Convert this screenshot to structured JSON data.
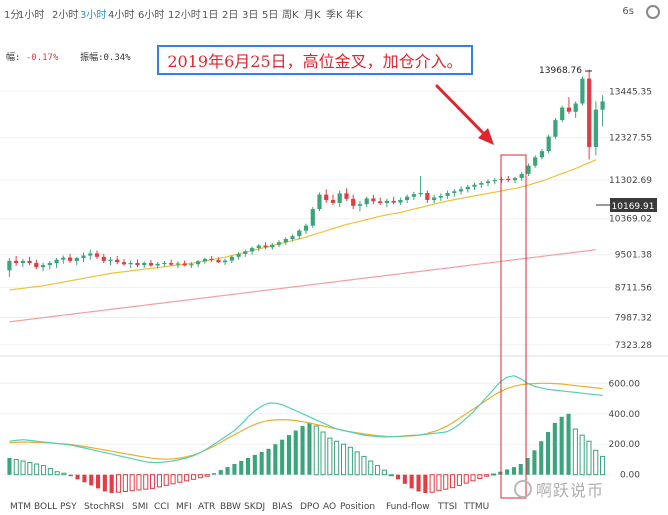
{
  "timeframes": [
    "1分",
    "1小时",
    "2小时",
    "3小时",
    "4小时",
    "6小时",
    "12小时",
    "1日",
    "2日",
    "3日",
    "5日",
    "周K",
    "月K",
    "季K",
    "年K"
  ],
  "active_timeframe": "3小时",
  "interval_label": "6s",
  "info_row": {
    "change_label": "幅",
    "change_value": "-0.17%",
    "amplitude_label": "振幅",
    "amplitude_value": "0.34%"
  },
  "annotation": "2019年6月25日，高位金叉，加仓介入。",
  "price_axis": {
    "ticks": [
      "13445.35",
      "12327.55",
      "11302.69",
      "10369.02",
      "9501.38",
      "8711.56",
      "7987.32",
      "7323.28"
    ],
    "high_label": "13968.76",
    "current_price": "10169.91"
  },
  "macd_axis": {
    "ticks": [
      "600.00",
      "400.00",
      "200.00",
      "0.00"
    ]
  },
  "indicators": [
    "MTM",
    "BOLL",
    "PSY",
    "StochRSI",
    "SMI",
    "CCI",
    "MFI",
    "ATR",
    "BBW",
    "SKDJ",
    "BIAS",
    "DPO",
    "AO",
    "Position",
    "Fund-flow",
    "TTSI",
    "TTMU"
  ],
  "watermark": "啊跃说币",
  "colors": {
    "up": "#3aa57a",
    "down": "#e23c44",
    "ma_short": "#f0c23a",
    "ma_long": "#f2a0a0",
    "signal_line": "#e8b030",
    "macd_line": "#55d0b8",
    "annotation_border": "#2f86d6",
    "annotation_text": "#e0252f",
    "arrow": "#e0252f",
    "active_tab": "#2a8fd6"
  },
  "chart_data": {
    "type": "candlestick",
    "price_range": [
      7200,
      14200
    ],
    "candles": [
      {
        "o": 9120,
        "h": 9420,
        "l": 8960,
        "c": 9350
      },
      {
        "o": 9350,
        "h": 9470,
        "l": 9230,
        "c": 9300
      },
      {
        "o": 9300,
        "h": 9400,
        "l": 9200,
        "c": 9350
      },
      {
        "o": 9350,
        "h": 9450,
        "l": 9250,
        "c": 9300
      },
      {
        "o": 9300,
        "h": 9380,
        "l": 9150,
        "c": 9200
      },
      {
        "o": 9200,
        "h": 9310,
        "l": 9100,
        "c": 9250
      },
      {
        "o": 9250,
        "h": 9350,
        "l": 9150,
        "c": 9300
      },
      {
        "o": 9300,
        "h": 9420,
        "l": 9180,
        "c": 9380
      },
      {
        "o": 9380,
        "h": 9480,
        "l": 9280,
        "c": 9430
      },
      {
        "o": 9430,
        "h": 9520,
        "l": 9300,
        "c": 9350
      },
      {
        "o": 9350,
        "h": 9450,
        "l": 9250,
        "c": 9420
      },
      {
        "o": 9420,
        "h": 9550,
        "l": 9320,
        "c": 9480
      },
      {
        "o": 9480,
        "h": 9620,
        "l": 9380,
        "c": 9530
      },
      {
        "o": 9530,
        "h": 9600,
        "l": 9400,
        "c": 9450
      },
      {
        "o": 9450,
        "h": 9520,
        "l": 9300,
        "c": 9350
      },
      {
        "o": 9350,
        "h": 9450,
        "l": 9250,
        "c": 9380
      },
      {
        "o": 9380,
        "h": 9470,
        "l": 9270,
        "c": 9320
      },
      {
        "o": 9320,
        "h": 9400,
        "l": 9230,
        "c": 9270
      },
      {
        "o": 9270,
        "h": 9360,
        "l": 9180,
        "c": 9300
      },
      {
        "o": 9300,
        "h": 9390,
        "l": 9200,
        "c": 9250
      },
      {
        "o": 9250,
        "h": 9340,
        "l": 9180,
        "c": 9300
      },
      {
        "o": 9300,
        "h": 9370,
        "l": 9210,
        "c": 9240
      },
      {
        "o": 9240,
        "h": 9320,
        "l": 9170,
        "c": 9280
      },
      {
        "o": 9280,
        "h": 9350,
        "l": 9210,
        "c": 9300
      },
      {
        "o": 9300,
        "h": 9380,
        "l": 9230,
        "c": 9260
      },
      {
        "o": 9260,
        "h": 9340,
        "l": 9180,
        "c": 9290
      },
      {
        "o": 9290,
        "h": 9360,
        "l": 9220,
        "c": 9240
      },
      {
        "o": 9240,
        "h": 9320,
        "l": 9180,
        "c": 9270
      },
      {
        "o": 9270,
        "h": 9370,
        "l": 9200,
        "c": 9340
      },
      {
        "o": 9340,
        "h": 9430,
        "l": 9280,
        "c": 9400
      },
      {
        "o": 9400,
        "h": 9470,
        "l": 9330,
        "c": 9370
      },
      {
        "o": 9370,
        "h": 9440,
        "l": 9300,
        "c": 9320
      },
      {
        "o": 9320,
        "h": 9410,
        "l": 9250,
        "c": 9360
      },
      {
        "o": 9360,
        "h": 9480,
        "l": 9300,
        "c": 9450
      },
      {
        "o": 9450,
        "h": 9560,
        "l": 9380,
        "c": 9520
      },
      {
        "o": 9520,
        "h": 9620,
        "l": 9450,
        "c": 9580
      },
      {
        "o": 9580,
        "h": 9700,
        "l": 9500,
        "c": 9660
      },
      {
        "o": 9660,
        "h": 9760,
        "l": 9590,
        "c": 9720
      },
      {
        "o": 9720,
        "h": 9800,
        "l": 9640,
        "c": 9680
      },
      {
        "o": 9680,
        "h": 9780,
        "l": 9620,
        "c": 9740
      },
      {
        "o": 9740,
        "h": 9850,
        "l": 9680,
        "c": 9800
      },
      {
        "o": 9800,
        "h": 9920,
        "l": 9740,
        "c": 9880
      },
      {
        "o": 9880,
        "h": 9990,
        "l": 9820,
        "c": 9950
      },
      {
        "o": 9950,
        "h": 10120,
        "l": 9880,
        "c": 10080
      },
      {
        "o": 10080,
        "h": 10250,
        "l": 10000,
        "c": 10200
      },
      {
        "o": 10200,
        "h": 10650,
        "l": 10150,
        "c": 10600
      },
      {
        "o": 10600,
        "h": 11000,
        "l": 10550,
        "c": 10950
      },
      {
        "o": 10950,
        "h": 11080,
        "l": 10750,
        "c": 10820
      },
      {
        "o": 10820,
        "h": 10950,
        "l": 10700,
        "c": 10750
      },
      {
        "o": 10750,
        "h": 11050,
        "l": 10650,
        "c": 10980
      },
      {
        "o": 10980,
        "h": 11100,
        "l": 10800,
        "c": 10850
      },
      {
        "o": 10850,
        "h": 10950,
        "l": 10600,
        "c": 10680
      },
      {
        "o": 10680,
        "h": 10800,
        "l": 10550,
        "c": 10720
      },
      {
        "o": 10720,
        "h": 10900,
        "l": 10650,
        "c": 10860
      },
      {
        "o": 10860,
        "h": 10950,
        "l": 10720,
        "c": 10790
      },
      {
        "o": 10790,
        "h": 10880,
        "l": 10700,
        "c": 10750
      },
      {
        "o": 10750,
        "h": 10850,
        "l": 10650,
        "c": 10800
      },
      {
        "o": 10800,
        "h": 10900,
        "l": 10720,
        "c": 10760
      },
      {
        "o": 10760,
        "h": 10880,
        "l": 10700,
        "c": 10820
      },
      {
        "o": 10820,
        "h": 10950,
        "l": 10750,
        "c": 10900
      },
      {
        "o": 10900,
        "h": 11020,
        "l": 10820,
        "c": 10960
      },
      {
        "o": 10960,
        "h": 11400,
        "l": 10900,
        "c": 10990
      },
      {
        "o": 10990,
        "h": 11050,
        "l": 10750,
        "c": 10820
      },
      {
        "o": 10820,
        "h": 10950,
        "l": 10740,
        "c": 10880
      },
      {
        "o": 10880,
        "h": 10980,
        "l": 10800,
        "c": 10920
      },
      {
        "o": 10920,
        "h": 11050,
        "l": 10850,
        "c": 10990
      },
      {
        "o": 10990,
        "h": 11080,
        "l": 10900,
        "c": 11030
      },
      {
        "o": 11030,
        "h": 11150,
        "l": 10950,
        "c": 11080
      },
      {
        "o": 11080,
        "h": 11190,
        "l": 11000,
        "c": 11140
      },
      {
        "o": 11140,
        "h": 11240,
        "l": 11060,
        "c": 11190
      },
      {
        "o": 11190,
        "h": 11280,
        "l": 11110,
        "c": 11230
      },
      {
        "o": 11230,
        "h": 11320,
        "l": 11150,
        "c": 11270
      },
      {
        "o": 11270,
        "h": 11350,
        "l": 11200,
        "c": 11300
      },
      {
        "o": 11300,
        "h": 11380,
        "l": 11230,
        "c": 11330
      },
      {
        "o": 11330,
        "h": 11400,
        "l": 11260,
        "c": 11300
      },
      {
        "o": 11300,
        "h": 11380,
        "l": 11230,
        "c": 11350
      },
      {
        "o": 11350,
        "h": 11500,
        "l": 11280,
        "c": 11450
      },
      {
        "o": 11450,
        "h": 11700,
        "l": 11400,
        "c": 11650
      },
      {
        "o": 11650,
        "h": 11900,
        "l": 11600,
        "c": 11850
      },
      {
        "o": 11850,
        "h": 12050,
        "l": 11800,
        "c": 12000
      },
      {
        "o": 12000,
        "h": 12400,
        "l": 11950,
        "c": 12350
      },
      {
        "o": 12350,
        "h": 12800,
        "l": 12300,
        "c": 12750
      },
      {
        "o": 12750,
        "h": 13100,
        "l": 12700,
        "c": 13050
      },
      {
        "o": 13050,
        "h": 13300,
        "l": 12900,
        "c": 12950
      },
      {
        "o": 12950,
        "h": 13200,
        "l": 12800,
        "c": 13150
      },
      {
        "o": 13150,
        "h": 13800,
        "l": 13100,
        "c": 13750
      },
      {
        "o": 13750,
        "h": 13968.76,
        "l": 11800,
        "c": 12100
      },
      {
        "o": 12100,
        "h": 13200,
        "l": 11900,
        "c": 13000
      },
      {
        "o": 13000,
        "h": 13350,
        "l": 12600,
        "c": 13200
      }
    ],
    "ma_short": [
      8650,
      8670,
      8690,
      8710,
      8730,
      8750,
      8780,
      8810,
      8840,
      8870,
      8900,
      8930,
      8960,
      8990,
      9020,
      9050,
      9070,
      9090,
      9110,
      9130,
      9150,
      9170,
      9190,
      9210,
      9230,
      9250,
      9270,
      9290,
      9320,
      9350,
      9380,
      9410,
      9440,
      9480,
      9520,
      9560,
      9600,
      9640,
      9680,
      9720,
      9760,
      9800,
      9840,
      9880,
      9930,
      9980,
      10030,
      10080,
      10130,
      10180,
      10230,
      10270,
      10310,
      10350,
      10390,
      10430,
      10460,
      10490,
      10520,
      10560,
      10600,
      10640,
      10680,
      10720,
      10760,
      10800,
      10830,
      10860,
      10890,
      10920,
      10950,
      10980,
      11010,
      11040,
      11070,
      11100,
      11140,
      11180,
      11230,
      11280,
      11340,
      11400,
      11460,
      11520,
      11580,
      11650,
      11720,
      11790
    ],
    "ma_long": [
      7880,
      7900,
      7920,
      7940,
      7960,
      7980,
      8000,
      8020,
      8040,
      8060,
      8080,
      8100,
      8120,
      8140,
      8160,
      8180,
      8200,
      8220,
      8240,
      8260,
      8280,
      8300,
      8320,
      8340,
      8360,
      8380,
      8400,
      8420,
      8440,
      8460,
      8480,
      8500,
      8520,
      8540,
      8560,
      8580,
      8600,
      8620,
      8640,
      8660,
      8680,
      8700,
      8720,
      8740,
      8760,
      8780,
      8800,
      8820,
      8840,
      8860,
      8880,
      8900,
      8920,
      8940,
      8960,
      8980,
      9000,
      9020,
      9040,
      9060,
      9080,
      9100,
      9120,
      9140,
      9160,
      9180,
      9200,
      9220,
      9240,
      9260,
      9280,
      9300,
      9320,
      9340,
      9360,
      9380,
      9400,
      9420,
      9440,
      9460,
      9480,
      9500,
      9520,
      9540,
      9560,
      9580,
      9600,
      9620
    ],
    "macd": {
      "range": [
        -120,
        720
      ],
      "histogram": [
        110,
        100,
        90,
        80,
        70,
        60,
        40,
        20,
        10,
        -10,
        -30,
        -50,
        -70,
        -90,
        -110,
        -120,
        -115,
        -110,
        -105,
        -100,
        -95,
        -90,
        -80,
        -70,
        -60,
        -50,
        -40,
        -30,
        -20,
        -10,
        10,
        30,
        50,
        70,
        90,
        110,
        130,
        150,
        170,
        200,
        230,
        260,
        290,
        320,
        340,
        320,
        280,
        240,
        220,
        200,
        180,
        150,
        120,
        90,
        60,
        30,
        0,
        -30,
        -60,
        -90,
        -110,
        -120,
        -115,
        -105,
        -95,
        -85,
        -70,
        -55,
        -40,
        -25,
        -10,
        5,
        20,
        35,
        50,
        70,
        110,
        160,
        220,
        280,
        340,
        380,
        400,
        300,
        260,
        220,
        160,
        120
      ],
      "fast": [
        220,
        225,
        230,
        225,
        220,
        215,
        210,
        205,
        200,
        195,
        185,
        175,
        165,
        155,
        145,
        135,
        125,
        115,
        105,
        95,
        85,
        80,
        80,
        85,
        90,
        100,
        110,
        125,
        145,
        170,
        200,
        230,
        260,
        290,
        330,
        380,
        420,
        450,
        470,
        470,
        460,
        440,
        420,
        400,
        380,
        360,
        340,
        320,
        300,
        290,
        280,
        270,
        260,
        255,
        250,
        248,
        250,
        252,
        255,
        258,
        260,
        265,
        270,
        275,
        280,
        300,
        330,
        370,
        410,
        460,
        510,
        560,
        610,
        640,
        650,
        630,
        600,
        580,
        570,
        560,
        555,
        550,
        545,
        540,
        535,
        530,
        525,
        520
      ],
      "slow": [
        210,
        212,
        215,
        214,
        212,
        210,
        208,
        205,
        202,
        198,
        192,
        185,
        178,
        170,
        162,
        154,
        146,
        138,
        130,
        122,
        114,
        108,
        104,
        102,
        104,
        110,
        118,
        130,
        146,
        166,
        188,
        212,
        238,
        262,
        286,
        310,
        330,
        345,
        355,
        360,
        362,
        360,
        355,
        348,
        340,
        330,
        320,
        310,
        300,
        290,
        282,
        275,
        268,
        262,
        257,
        253,
        250,
        250,
        252,
        255,
        260,
        268,
        280,
        295,
        315,
        340,
        370,
        400,
        430,
        460,
        490,
        520,
        545,
        565,
        580,
        590,
        595,
        598,
        600,
        600,
        598,
        595,
        590,
        585,
        580,
        575,
        570,
        565
      ]
    }
  }
}
